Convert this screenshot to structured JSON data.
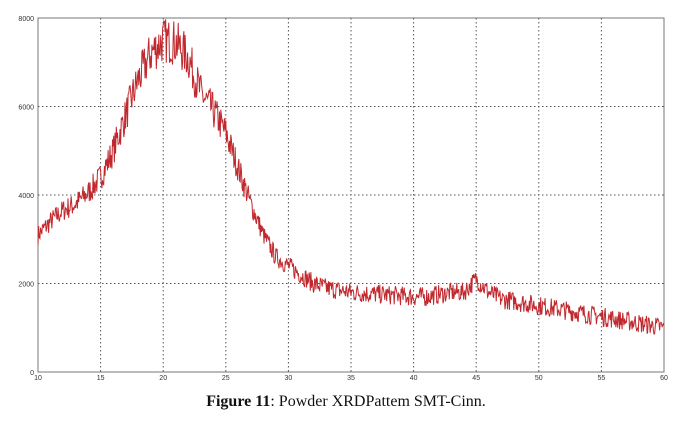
{
  "caption": {
    "label": "Figure 11",
    "text": ": Powder XRDPattem SMT-Cinn."
  },
  "chart_data": {
    "type": "line",
    "title": "",
    "xlabel": "",
    "ylabel": "",
    "xlim": [
      10,
      60
    ],
    "ylim": [
      0,
      8000
    ],
    "xticks": [
      10,
      15,
      20,
      25,
      30,
      35,
      40,
      45,
      50,
      55,
      60
    ],
    "yticks": [
      0,
      2000,
      4000,
      6000,
      8000
    ],
    "ytick_labels": [
      "0",
      "2000",
      "4000",
      "6000",
      "8000"
    ],
    "grid": true,
    "line_color": "#c0282e",
    "series": [
      {
        "x": [
          10,
          11,
          12,
          13,
          14,
          15,
          16,
          17,
          18,
          19,
          20,
          21,
          22,
          23,
          24,
          25,
          26,
          27,
          28,
          29,
          30,
          31,
          32,
          33,
          34,
          35,
          36,
          37,
          38,
          39,
          40,
          41,
          42,
          43,
          44,
          45,
          46,
          47,
          48,
          49,
          50,
          51,
          52,
          53,
          54,
          55,
          56,
          57,
          58,
          59,
          60
        ],
        "y": [
          3100,
          3400,
          3650,
          3800,
          4050,
          4400,
          5000,
          5800,
          6600,
          7200,
          7500,
          7450,
          7100,
          6300,
          5900,
          5400,
          4600,
          3800,
          3100,
          2600,
          2400,
          2200,
          2000,
          1900,
          1850,
          1800,
          1780,
          1760,
          1740,
          1720,
          1700,
          1700,
          1750,
          1800,
          1800,
          2100,
          1800,
          1650,
          1600,
          1550,
          1500,
          1450,
          1400,
          1350,
          1300,
          1250,
          1200,
          1150,
          1100,
          1050,
          1000
        ]
      }
    ]
  }
}
